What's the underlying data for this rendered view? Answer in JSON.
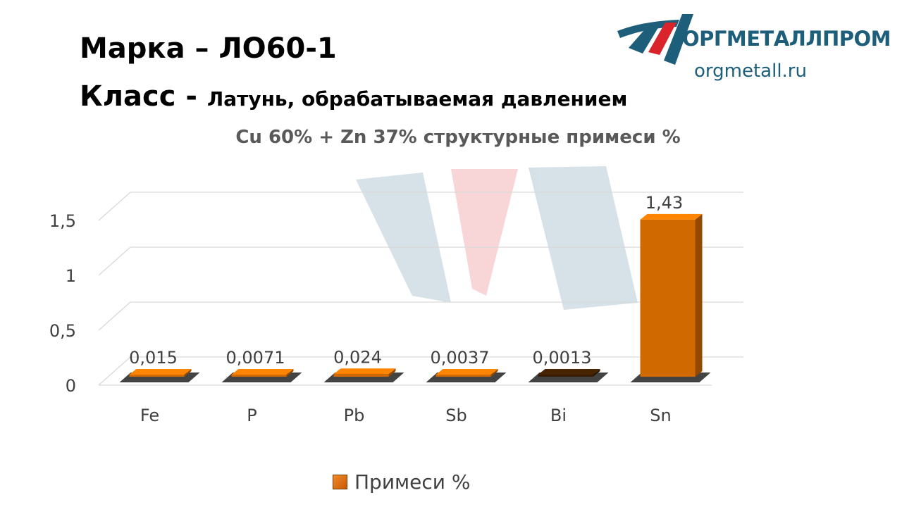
{
  "header": {
    "marka_label": "Марка",
    "marka_dash": " – ",
    "marka_value": "ЛО60-1",
    "klass_label": "Класс -",
    "klass_value": "Латунь, обрабатываемая давлением"
  },
  "logo": {
    "name": "ОРГМЕТАЛЛПРОМ",
    "url": "orgmetall.ru",
    "colors": {
      "red": "#d9242b",
      "blue": "#1d5f7b"
    }
  },
  "colors": {
    "bar": "#d06a00",
    "bar_dark": "#3a1c00",
    "grid": "#d9d9d9",
    "text": "#404040"
  },
  "chart_data": {
    "type": "bar",
    "title": "Cu 60% + Zn 37% структурные примеси %",
    "categories": [
      "Fe",
      "P",
      "Pb",
      "Sb",
      "Bi",
      "Sn"
    ],
    "series": [
      {
        "name": "Примеси %",
        "values": [
          0.015,
          0.0071,
          0.024,
          0.0037,
          0.0013,
          1.43
        ],
        "labels": [
          "0,015",
          "0,0071",
          "0,024",
          "0,0037",
          "0,0013",
          "1,43"
        ]
      }
    ],
    "bar_fill_overrides": {
      "Bi": "#3a1c00"
    },
    "y_ticks": [
      {
        "value": 0,
        "label": "0"
      },
      {
        "value": 0.5,
        "label": "0,5"
      },
      {
        "value": 1,
        "label": "1"
      },
      {
        "value": 1.5,
        "label": "1,5"
      }
    ],
    "ylim": [
      0,
      1.5
    ],
    "grid": true,
    "legend": "bottom",
    "style": "3d"
  }
}
